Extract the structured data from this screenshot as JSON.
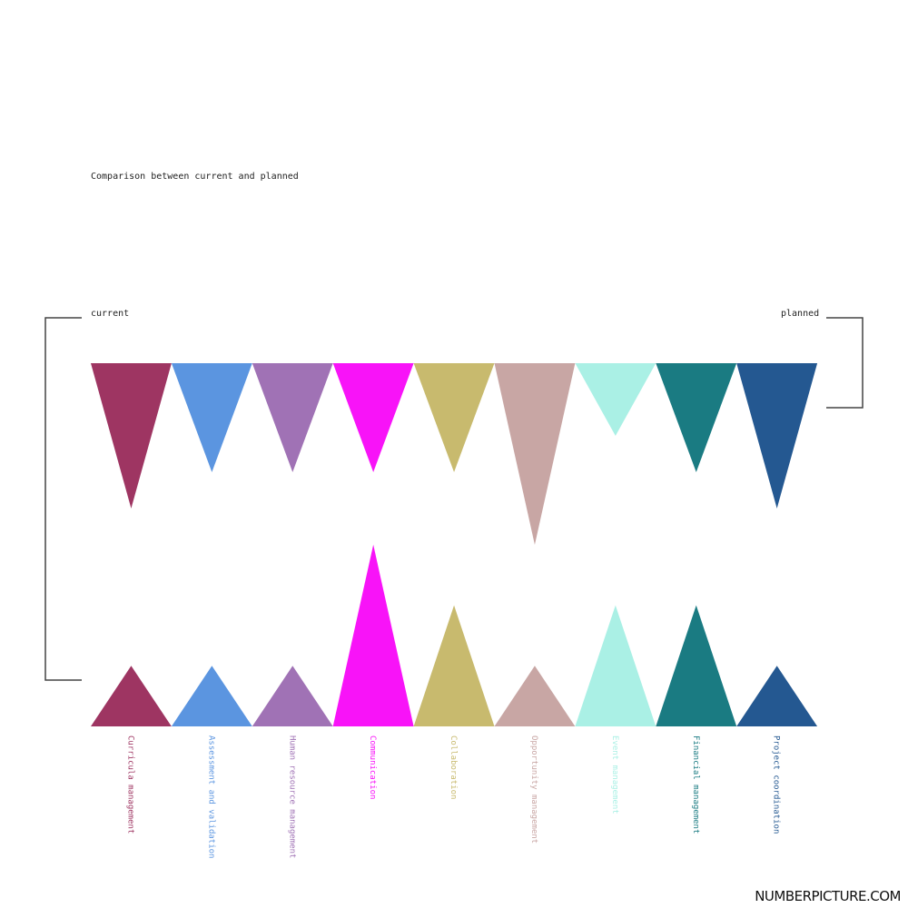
{
  "chart_data": {
    "type": "bar",
    "title": "Comparison between current and planned",
    "series_labels": {
      "current": "current",
      "planned": "planned"
    },
    "categories": [
      "Curricula management",
      "Assessment and validation",
      "Human resource management",
      "Communication",
      "Collaboration",
      "Opportunity management",
      "Event management",
      "Financial management",
      "Project coordination"
    ],
    "colors": [
      "#9e3562",
      "#5b95e0",
      "#a072b5",
      "#f813f8",
      "#c8ba6e",
      "#c8a6a4",
      "#aaf0e5",
      "#1a7b82",
      "#245891"
    ],
    "series": [
      {
        "name": "current",
        "values": [
          4,
          3,
          3,
          3,
          3,
          5,
          2,
          3,
          4
        ]
      },
      {
        "name": "planned",
        "values": [
          1,
          1,
          1,
          3,
          2,
          1,
          2,
          2,
          1
        ]
      }
    ]
  },
  "brand": "NUMBERPICTURE.COM"
}
